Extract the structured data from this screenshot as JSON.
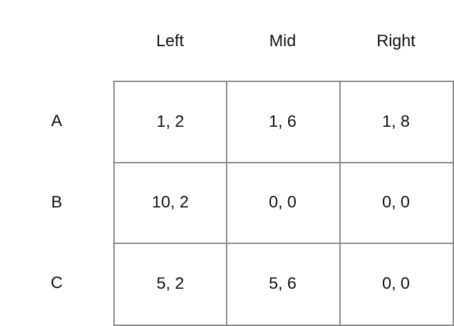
{
  "columns": [
    "Left",
    "Mid",
    "Right"
  ],
  "rows": [
    {
      "label": "A",
      "cells": [
        "1, 2",
        "1, 6",
        "1, 8"
      ]
    },
    {
      "label": "B",
      "cells": [
        "10, 2",
        "0, 0",
        "0, 0"
      ]
    },
    {
      "label": "C",
      "cells": [
        "5, 2",
        "5, 6",
        "0, 0"
      ]
    }
  ],
  "colors": {
    "grid_line": "#888888",
    "text": "#111111",
    "background": "#ffffff"
  }
}
